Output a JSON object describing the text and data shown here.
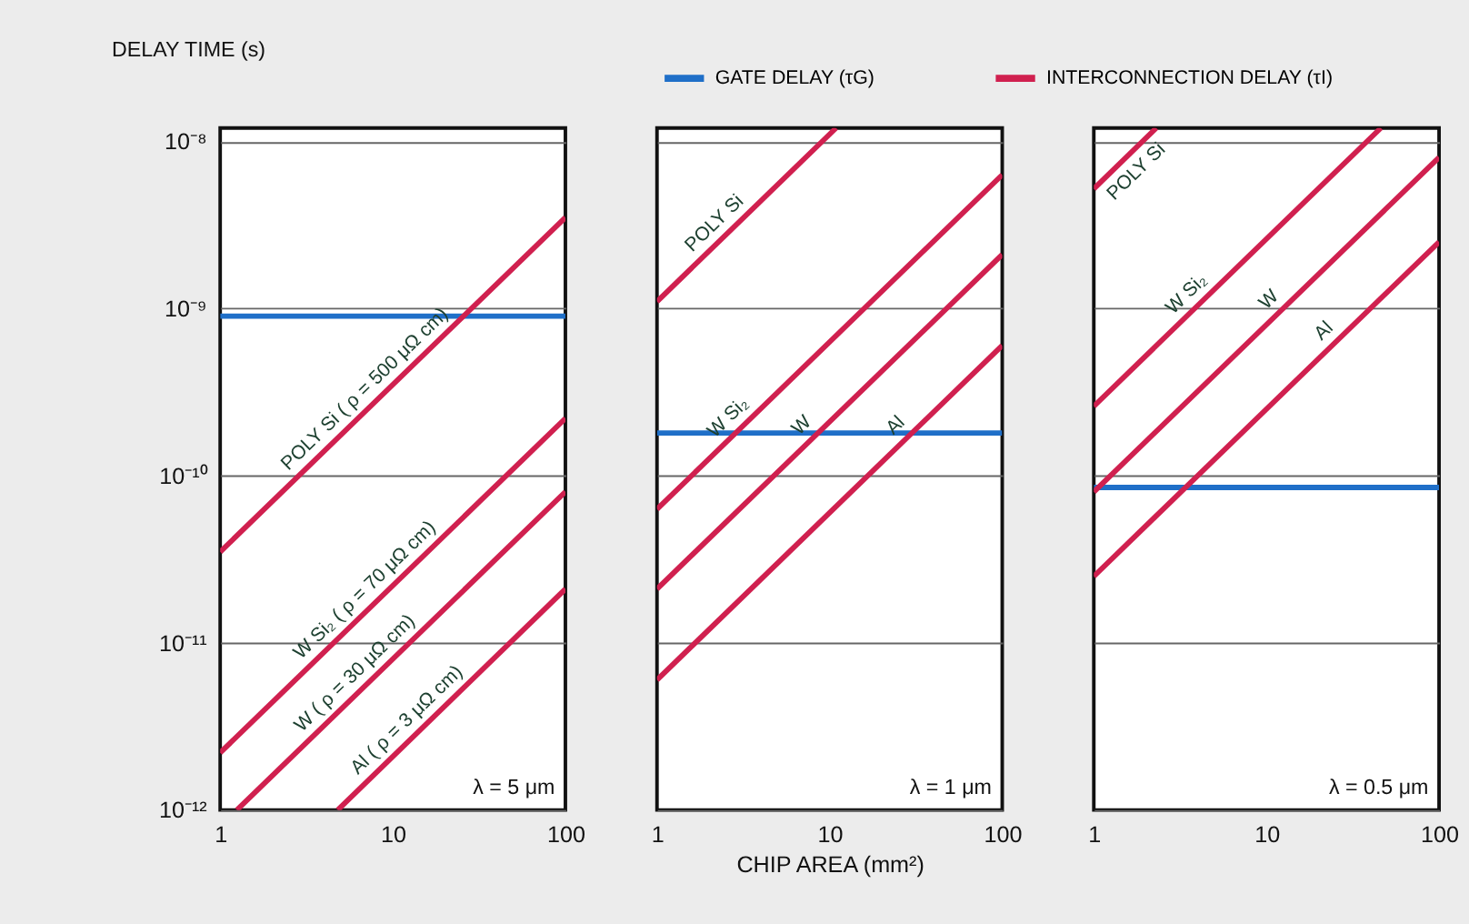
{
  "chart_data": [
    {
      "type": "line",
      "ylabel": "DELAY TIME (s)",
      "legend": "top",
      "grid": "y",
      "marker": "none",
      "line_style": "solid",
      "log": "xy",
      "xlim": [
        1,
        100
      ],
      "xticks": [
        1,
        10,
        100
      ],
      "ylim": [
        1e-12,
        1.2e-08
      ],
      "yticks": [
        {
          "value": 1e-12,
          "label": "10⁻¹²"
        },
        {
          "value": 1e-11,
          "label": "10⁻¹¹"
        },
        {
          "value": 1e-10,
          "label": "10⁻¹⁰"
        },
        {
          "value": 1e-09,
          "label": "10⁻⁹"
        },
        {
          "value": 1e-08,
          "label": "10⁻⁸"
        }
      ],
      "series": [
        {
          "name": "GATE DELAY (τG)",
          "color": "#1f6fc8",
          "x": [
            1,
            100
          ],
          "values": [
            9e-10,
            9e-10
          ]
        },
        {
          "name": "INTERCONNECTION DELAY (τI)",
          "color": "#d0204f",
          "x": [
            1,
            100
          ],
          "values": [
            3.5e-11,
            3.5e-09
          ]
        },
        {
          "color": "#d0204f",
          "x": [
            1,
            100
          ],
          "values": [
            2.2e-12,
            2.2e-10
          ]
        },
        {
          "color": "#d0204f",
          "x": [
            1.25,
            100
          ],
          "values": [
            1e-12,
            8e-11
          ]
        },
        {
          "color": "#d0204f",
          "x": [
            4.8,
            100
          ],
          "values": [
            1e-12,
            2.1e-11
          ]
        }
      ],
      "annotations": [
        "λ = 5 μm",
        {
          "text": "POLY Si ( ρ = 500 μΩ cm)",
          "x": 8,
          "y": 2.8e-10
        },
        {
          "text": "W Si₂ ( ρ = 70 μΩ cm)",
          "x": 8,
          "y": 1.76e-11
        },
        {
          "text": "W ( ρ = 30 μΩ cm)",
          "x": 7,
          "y": 5.6e-12
        },
        {
          "text": "Al ( ρ = 3 μΩ cm)",
          "x": 14,
          "y": 2.94e-12
        }
      ]
    },
    {
      "type": "line",
      "xlabel": "CHIP AREA (mm²)",
      "grid": "y",
      "marker": "none",
      "line_style": "solid",
      "log": "xy",
      "tick_labels": "x",
      "xlim": [
        1,
        100
      ],
      "xticks": [
        1,
        10,
        100
      ],
      "ylim": [
        1e-12,
        1.2e-08
      ],
      "yticks": [
        {
          "value": 1e-12,
          "label": null
        },
        {
          "value": 1e-11,
          "label": null
        },
        {
          "value": 1e-10,
          "label": null
        },
        {
          "value": 1e-09,
          "label": null
        },
        {
          "value": 1e-08,
          "label": null
        }
      ],
      "series": [
        {
          "color": "#1f6fc8",
          "x": [
            1,
            100
          ],
          "values": [
            1.8e-10,
            1.8e-10
          ]
        },
        {
          "color": "#d0204f",
          "x": [
            1,
            10.9
          ],
          "values": [
            1.1e-09,
            1.2e-08
          ]
        },
        {
          "color": "#d0204f",
          "x": [
            1,
            100
          ],
          "values": [
            6.3e-11,
            6.3e-09
          ]
        },
        {
          "color": "#d0204f",
          "x": [
            1,
            100
          ],
          "values": [
            2.1e-11,
            2.1e-09
          ]
        },
        {
          "color": "#d0204f",
          "x": [
            1,
            100
          ],
          "values": [
            6e-12,
            6e-10
          ]
        }
      ],
      "annotations": [
        "λ = 1 μm",
        {
          "text": "POLY Si",
          "x": 2.5,
          "y": 2.75e-09
        },
        {
          "text": "W Si₂",
          "x": 3,
          "y": 1.9e-10
        },
        {
          "text": "W",
          "x": 8,
          "y": 1.7e-10
        },
        {
          "text": "Al",
          "x": 28,
          "y": 1.7e-10
        }
      ]
    },
    {
      "type": "line",
      "grid": "y",
      "marker": "none",
      "line_style": "solid",
      "log": "xy",
      "tick_labels": "x",
      "xlim": [
        1,
        100
      ],
      "xticks": [
        1,
        10,
        100
      ],
      "ylim": [
        1e-12,
        1.2e-08
      ],
      "yticks": [
        {
          "value": 1e-12,
          "label": null
        },
        {
          "value": 1e-11,
          "label": null
        },
        {
          "value": 1e-10,
          "label": null
        },
        {
          "value": 1e-09,
          "label": null
        },
        {
          "value": 1e-08,
          "label": null
        }
      ],
      "series": [
        {
          "color": "#1f6fc8",
          "x": [
            1,
            100
          ],
          "values": [
            8.5e-11,
            8.5e-11
          ]
        },
        {
          "color": "#d0204f",
          "x": [
            1,
            2.3
          ],
          "values": [
            5.2e-09,
            1.2e-08
          ]
        },
        {
          "color": "#d0204f",
          "x": [
            1,
            46
          ],
          "values": [
            2.6e-10,
            1.2e-08
          ]
        },
        {
          "color": "#d0204f",
          "x": [
            1,
            100
          ],
          "values": [
            8e-11,
            8e-09
          ]
        },
        {
          "color": "#d0204f",
          "x": [
            1,
            100
          ],
          "values": [
            2.5e-11,
            2.5e-09
          ]
        }
      ],
      "annotations": [
        "λ = 0.5 μm",
        {
          "text": "POLY Si",
          "x": 1.5,
          "y": 7.8e-09
        },
        {
          "text": "W Si₂",
          "x": 4,
          "y": 1.04e-09
        },
        {
          "text": "W",
          "x": 12,
          "y": 9.6e-10
        },
        {
          "text": "Al",
          "x": 25,
          "y": 6.25e-10
        }
      ]
    }
  ]
}
